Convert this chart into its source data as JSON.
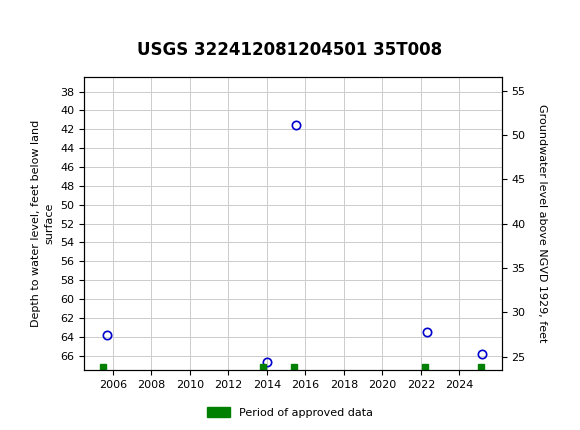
{
  "title": "USGS 322412081204501 35T008",
  "ylabel_left": "Depth to water level, feet below land\nsurface",
  "ylabel_right": "Groundwater level above NGVD 1929, feet",
  "header_color": "#1a6b3c",
  "xlim": [
    2004.5,
    2026.2
  ],
  "ylim_left": [
    67.5,
    36.5
  ],
  "ylim_right": [
    23.5,
    56.5
  ],
  "yticks_left": [
    38,
    40,
    42,
    44,
    46,
    48,
    50,
    52,
    54,
    56,
    58,
    60,
    62,
    64,
    66
  ],
  "ytick_labels_left": [
    "38",
    "40",
    "42",
    "44",
    "46",
    "48",
    "50",
    "52",
    "54",
    "56",
    "58",
    "60",
    "62",
    "64",
    "66"
  ],
  "yticks_right": [
    55,
    50,
    45,
    40,
    35,
    30,
    25
  ],
  "xticks": [
    2006,
    2008,
    2010,
    2012,
    2014,
    2016,
    2018,
    2020,
    2022,
    2024
  ],
  "circle_points_x": [
    2005.7,
    2014.0,
    2015.5,
    2022.3,
    2025.2
  ],
  "circle_points_y": [
    63.8,
    66.7,
    41.5,
    63.5,
    65.8
  ],
  "green_points_x": [
    2005.5,
    2013.8,
    2015.4,
    2022.2,
    2025.1
  ],
  "green_points_y": [
    67.2,
    67.2,
    67.2,
    67.2,
    67.2
  ],
  "circle_color": "#0000cc",
  "green_color": "#008000",
  "bg_color": "#ffffff",
  "grid_color": "#cccccc",
  "legend_label": "Period of approved data",
  "title_fontsize": 12,
  "axis_fontsize": 8,
  "tick_fontsize": 8
}
